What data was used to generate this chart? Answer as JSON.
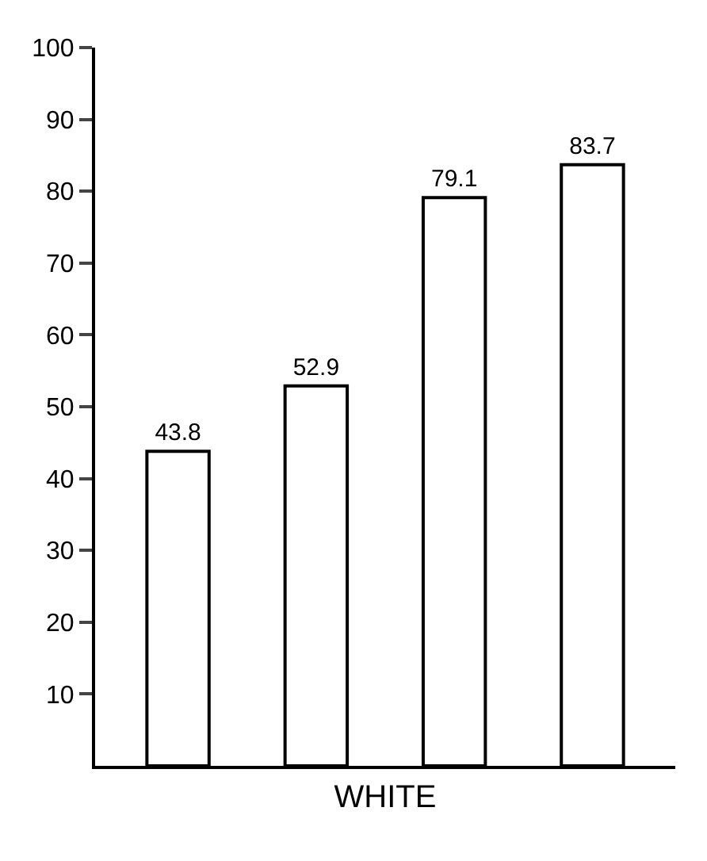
{
  "chart_data": {
    "type": "bar",
    "xlabel": "WHITE",
    "categories": [
      null,
      null,
      null,
      null
    ],
    "values": [
      43.8,
      52.9,
      79.1,
      83.7
    ],
    "color": "#ffffff",
    "ylim": [
      0,
      100
    ],
    "yticks": [
      10,
      20,
      30,
      40,
      50,
      60,
      70,
      80,
      90,
      100
    ],
    "data_labels": true
  }
}
